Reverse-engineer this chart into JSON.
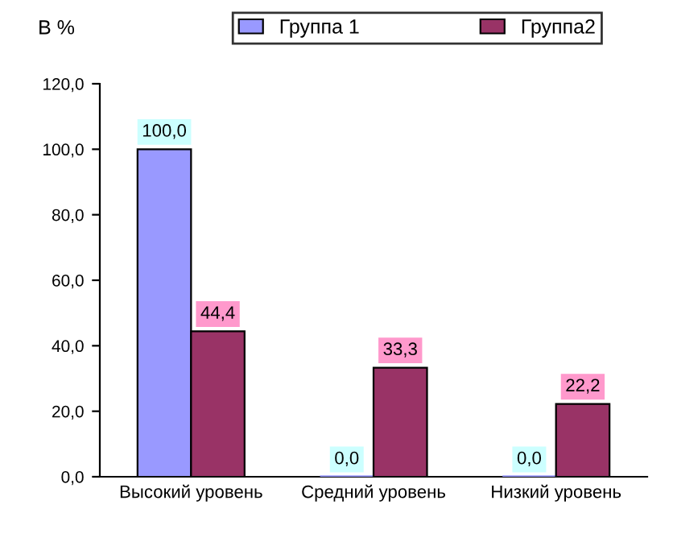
{
  "chart_data": {
    "type": "bar",
    "ylabel": "В %",
    "categories": [
      "Высокий уровень",
      "Средний уровень",
      "Низкий уровень"
    ],
    "series": [
      {
        "name": "Группа 1",
        "color": "#9999ff",
        "values": [
          100.0,
          0.0,
          0.0
        ],
        "value_labels": [
          "100,0",
          "0,0",
          "0,0"
        ]
      },
      {
        "name": "Группа2",
        "color": "#993366",
        "values": [
          44.4,
          33.3,
          22.2
        ],
        "value_labels": [
          "44,4",
          "33,3",
          "22,2"
        ]
      }
    ],
    "ylim": [
      0,
      120
    ],
    "yticks": [
      {
        "value": 0,
        "label": "0,0"
      },
      {
        "value": 20,
        "label": "20,0"
      },
      {
        "value": 40,
        "label": "40,0"
      },
      {
        "value": 60,
        "label": "60,0"
      },
      {
        "value": 80,
        "label": "80,0"
      },
      {
        "value": 100,
        "label": "100,0"
      },
      {
        "value": 120,
        "label": "120,0"
      }
    ],
    "grid": false,
    "legend": "top"
  }
}
